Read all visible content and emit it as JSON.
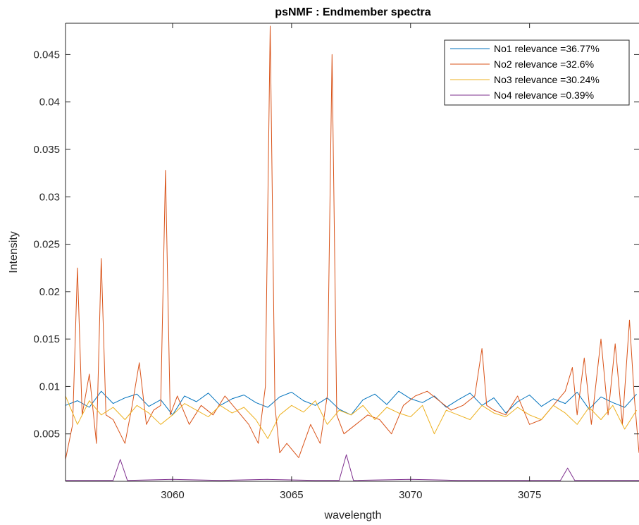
{
  "chart_data": {
    "type": "line",
    "title": "psNMF : Endmember spectra",
    "xlabel": "wavelength",
    "ylabel": "Intensity",
    "xlim": [
      3055.5,
      3079.6
    ],
    "ylim": [
      0,
      0.0483
    ],
    "xticks": [
      3060,
      3065,
      3070,
      3075
    ],
    "xtick_labels": [
      "3060",
      "3065",
      "3070",
      "3075"
    ],
    "yticks": [
      0.005,
      0.01,
      0.015,
      0.02,
      0.025,
      0.03,
      0.035,
      0.04,
      0.045
    ],
    "ytick_labels": [
      "0.005",
      "0.01",
      "0.015",
      "0.02",
      "0.025",
      "0.03",
      "0.035",
      "0.04",
      "0.045"
    ],
    "grid": false,
    "legend_position": "top-right",
    "series": [
      {
        "name": "No1 relevance =36.77%",
        "color": "#0072BD",
        "x": [
          3055.5,
          3056.0,
          3056.5,
          3057.0,
          3057.5,
          3058.0,
          3058.5,
          3059.0,
          3059.5,
          3060.0,
          3060.5,
          3061.0,
          3061.5,
          3062.0,
          3062.5,
          3063.0,
          3063.5,
          3064.0,
          3064.5,
          3065.0,
          3065.5,
          3066.0,
          3066.5,
          3067.0,
          3067.5,
          3068.0,
          3068.5,
          3069.0,
          3069.5,
          3070.0,
          3070.5,
          3071.0,
          3071.5,
          3072.0,
          3072.5,
          3073.0,
          3073.5,
          3074.0,
          3074.5,
          3075.0,
          3075.5,
          3076.0,
          3076.5,
          3077.0,
          3077.5,
          3078.0,
          3078.5,
          3079.0,
          3079.5
        ],
        "y": [
          0.008,
          0.0085,
          0.0078,
          0.0095,
          0.0082,
          0.0088,
          0.0092,
          0.0079,
          0.0086,
          0.007,
          0.009,
          0.0084,
          0.0093,
          0.008,
          0.0087,
          0.0091,
          0.0083,
          0.0078,
          0.0089,
          0.0094,
          0.0085,
          0.008,
          0.0088,
          0.0076,
          0.007,
          0.0086,
          0.0092,
          0.0081,
          0.0095,
          0.0087,
          0.0083,
          0.009,
          0.0078,
          0.0086,
          0.0093,
          0.008,
          0.0088,
          0.0072,
          0.0084,
          0.0091,
          0.0079,
          0.0087,
          0.0082,
          0.0094,
          0.0076,
          0.0089,
          0.0083,
          0.0078,
          0.0092
        ]
      },
      {
        "name": "No2 relevance =32.6%",
        "color": "#D95319",
        "x": [
          3055.5,
          3055.8,
          3056.0,
          3056.2,
          3056.5,
          3056.8,
          3057.0,
          3057.2,
          3057.5,
          3058.0,
          3058.3,
          3058.6,
          3058.9,
          3059.2,
          3059.5,
          3059.7,
          3059.9,
          3060.2,
          3060.7,
          3061.2,
          3061.7,
          3062.2,
          3062.7,
          3063.2,
          3063.6,
          3063.9,
          3064.1,
          3064.3,
          3064.5,
          3064.8,
          3065.3,
          3065.8,
          3066.2,
          3066.5,
          3066.7,
          3066.9,
          3067.2,
          3067.7,
          3068.2,
          3068.7,
          3069.2,
          3069.7,
          3070.2,
          3070.7,
          3071.2,
          3071.7,
          3072.2,
          3072.7,
          3073.0,
          3073.2,
          3073.5,
          3074.0,
          3074.5,
          3075.0,
          3075.5,
          3076.0,
          3076.5,
          3076.8,
          3077.0,
          3077.3,
          3077.6,
          3078.0,
          3078.3,
          3078.6,
          3078.9,
          3079.2,
          3079.4,
          3079.6
        ],
        "y": [
          0.0023,
          0.006,
          0.0225,
          0.007,
          0.0113,
          0.004,
          0.0235,
          0.007,
          0.0065,
          0.004,
          0.008,
          0.0125,
          0.006,
          0.0075,
          0.008,
          0.0328,
          0.007,
          0.009,
          0.006,
          0.008,
          0.007,
          0.009,
          0.0075,
          0.006,
          0.004,
          0.01,
          0.048,
          0.008,
          0.003,
          0.004,
          0.0025,
          0.006,
          0.004,
          0.009,
          0.045,
          0.007,
          0.005,
          0.006,
          0.007,
          0.0065,
          0.005,
          0.008,
          0.009,
          0.0095,
          0.0085,
          0.0075,
          0.008,
          0.009,
          0.014,
          0.008,
          0.0075,
          0.007,
          0.009,
          0.006,
          0.0065,
          0.008,
          0.0095,
          0.012,
          0.007,
          0.013,
          0.006,
          0.015,
          0.007,
          0.0145,
          0.006,
          0.017,
          0.009,
          0.003
        ]
      },
      {
        "name": "No3 relevance =30.24%",
        "color": "#EDB120",
        "x": [
          3055.5,
          3056.0,
          3056.5,
          3057.0,
          3057.5,
          3058.0,
          3058.5,
          3059.0,
          3059.5,
          3060.0,
          3060.5,
          3061.0,
          3061.5,
          3062.0,
          3062.5,
          3063.0,
          3063.5,
          3064.0,
          3064.5,
          3065.0,
          3065.5,
          3066.0,
          3066.5,
          3067.0,
          3067.5,
          3068.0,
          3068.5,
          3069.0,
          3069.5,
          3070.0,
          3070.5,
          3071.0,
          3071.5,
          3072.0,
          3072.5,
          3073.0,
          3073.5,
          3074.0,
          3074.5,
          3075.0,
          3075.5,
          3076.0,
          3076.5,
          3077.0,
          3077.5,
          3078.0,
          3078.5,
          3079.0,
          3079.5
        ],
        "y": [
          0.009,
          0.006,
          0.0085,
          0.007,
          0.0078,
          0.0065,
          0.008,
          0.0072,
          0.006,
          0.007,
          0.0082,
          0.0075,
          0.0068,
          0.008,
          0.0072,
          0.0078,
          0.0065,
          0.0045,
          0.007,
          0.008,
          0.0073,
          0.0085,
          0.006,
          0.0075,
          0.007,
          0.008,
          0.0065,
          0.0078,
          0.0072,
          0.0068,
          0.008,
          0.005,
          0.0075,
          0.007,
          0.0065,
          0.008,
          0.0072,
          0.0068,
          0.0078,
          0.007,
          0.0065,
          0.008,
          0.0072,
          0.006,
          0.0078,
          0.0065,
          0.008,
          0.0055,
          0.0075
        ]
      },
      {
        "name": "No4 relevance =0.39%",
        "color": "#7E2F8E",
        "x": [
          3055.5,
          3057.5,
          3057.8,
          3058.1,
          3060.0,
          3062.0,
          3064.0,
          3066.0,
          3067.0,
          3067.3,
          3067.6,
          3070.0,
          3072.0,
          3074.0,
          3076.3,
          3076.6,
          3076.9,
          3078.0,
          3079.6
        ],
        "y": [
          0.0001,
          0.0001,
          0.0023,
          0.0001,
          0.0002,
          0.0001,
          0.0002,
          0.0001,
          0.0001,
          0.0028,
          0.0001,
          0.0002,
          0.0001,
          0.0001,
          0.0001,
          0.0014,
          0.0001,
          0.0001,
          0.0001
        ]
      }
    ]
  }
}
